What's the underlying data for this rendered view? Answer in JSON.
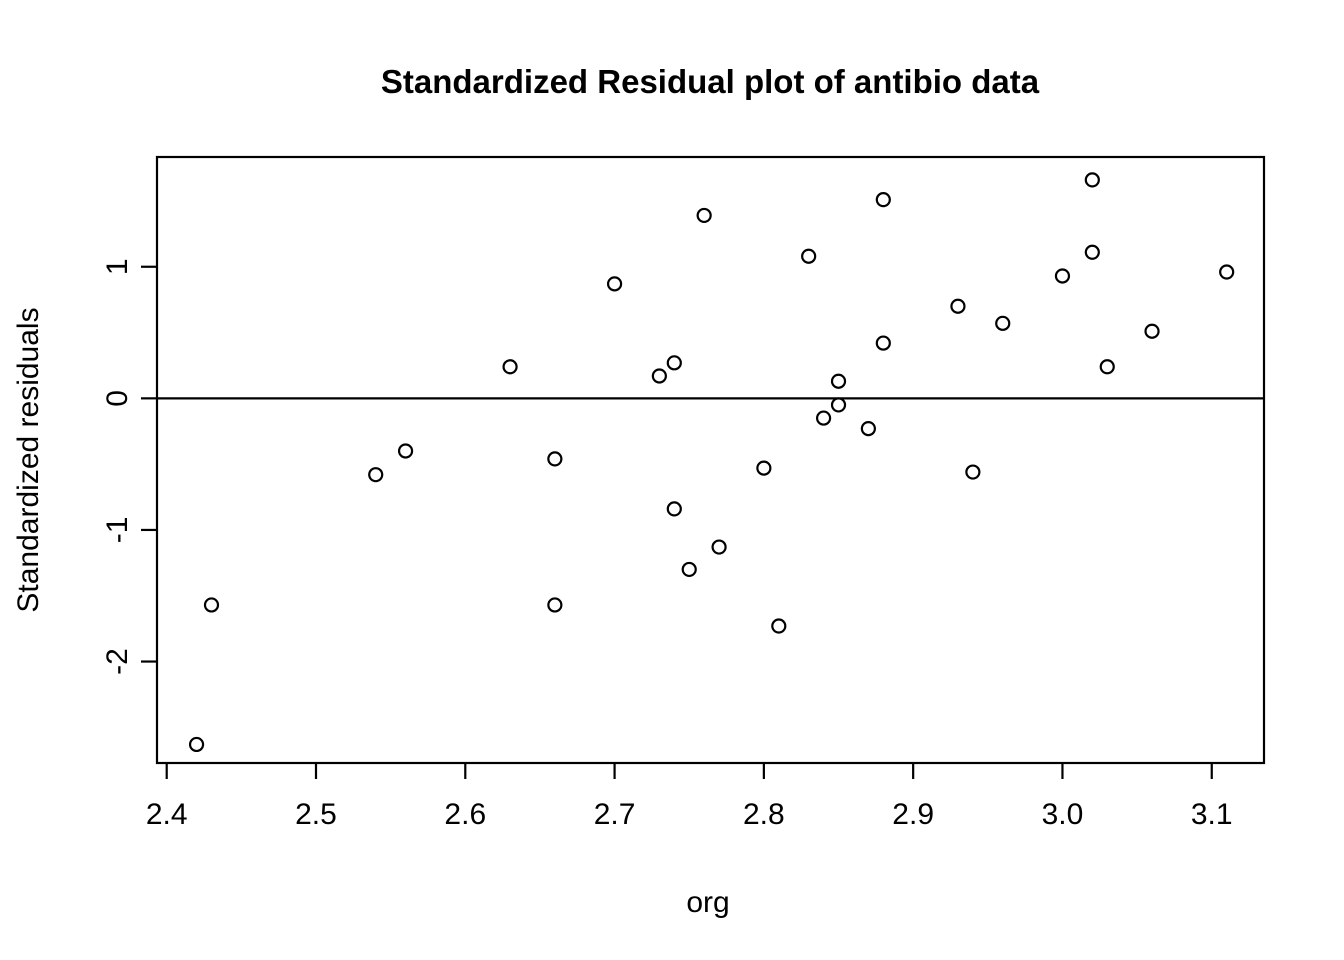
{
  "chart_data": {
    "type": "scatter",
    "title": "Standardized Residual plot of antibio data",
    "xlabel": "org",
    "ylabel": "Standardized residuals",
    "x_ticks": [
      {
        "value": 2.4,
        "label": "2.4"
      },
      {
        "value": 2.5,
        "label": "2.5"
      },
      {
        "value": 2.6,
        "label": "2.6"
      },
      {
        "value": 2.7,
        "label": "2.7"
      },
      {
        "value": 2.8,
        "label": "2.8"
      },
      {
        "value": 2.9,
        "label": "2.9"
      },
      {
        "value": 3.0,
        "label": "3.0"
      },
      {
        "value": 3.1,
        "label": "3.1"
      }
    ],
    "y_ticks": [
      {
        "value": -2,
        "label": "-2"
      },
      {
        "value": -1,
        "label": "-1"
      },
      {
        "value": 0,
        "label": "0"
      },
      {
        "value": 1,
        "label": "1"
      }
    ],
    "xlim": [
      2.3935,
      3.135
    ],
    "ylim": [
      -2.771,
      1.834
    ],
    "reference_line_y": 0,
    "grid": false,
    "legend": null,
    "marker": "open-circle",
    "colors": {
      "background": "#ffffff",
      "foreground": "#000000"
    },
    "points": [
      [
        2.42,
        -2.63
      ],
      [
        2.43,
        -1.57
      ],
      [
        2.54,
        -0.58
      ],
      [
        2.56,
        -0.4
      ],
      [
        2.63,
        0.24
      ],
      [
        2.66,
        -0.46
      ],
      [
        2.66,
        -1.57
      ],
      [
        2.7,
        0.87
      ],
      [
        2.73,
        0.17
      ],
      [
        2.74,
        0.27
      ],
      [
        2.74,
        -0.84
      ],
      [
        2.75,
        -1.3
      ],
      [
        2.76,
        1.39
      ],
      [
        2.77,
        -1.13
      ],
      [
        2.8,
        -0.53
      ],
      [
        2.81,
        -1.73
      ],
      [
        2.83,
        1.08
      ],
      [
        2.84,
        -0.15
      ],
      [
        2.85,
        -0.05
      ],
      [
        2.85,
        0.13
      ],
      [
        2.87,
        -0.23
      ],
      [
        2.88,
        0.42
      ],
      [
        2.88,
        1.51
      ],
      [
        2.93,
        0.7
      ],
      [
        2.94,
        -0.56
      ],
      [
        2.96,
        0.57
      ],
      [
        3.0,
        0.93
      ],
      [
        3.02,
        1.66
      ],
      [
        3.02,
        1.11
      ],
      [
        3.03,
        0.24
      ],
      [
        3.06,
        0.51
      ],
      [
        3.11,
        0.96
      ]
    ]
  }
}
